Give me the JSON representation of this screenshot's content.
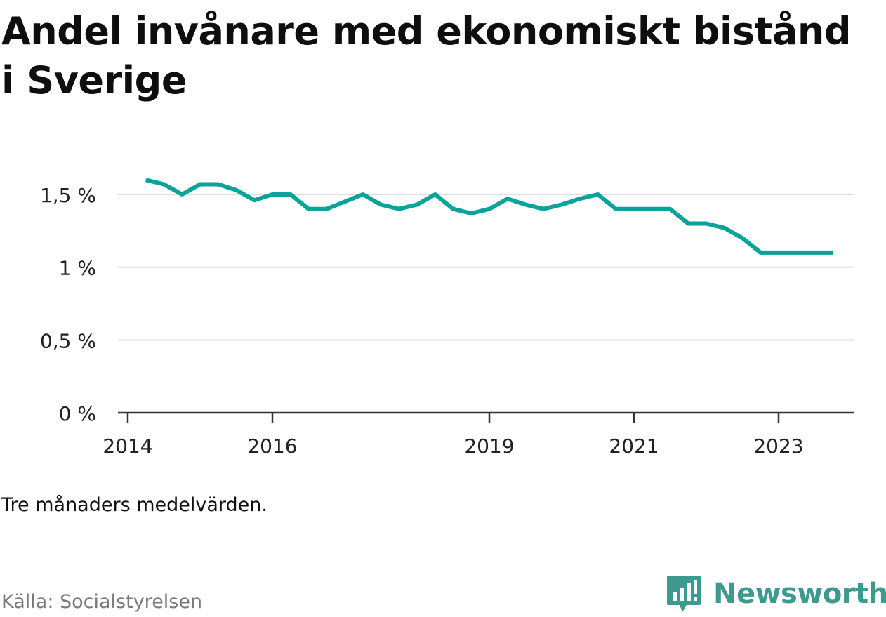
{
  "title": "Andel invånare med ekonomiskt bistånd i Sverige",
  "note": "Tre månaders medelvärden.",
  "source": "Källa: Socialstyrelsen",
  "brand": {
    "name": "Newsworthy",
    "icon": "newsworthy-logo-icon"
  },
  "colors": {
    "line": "#0aa39a",
    "grid": "#dddddd",
    "axis": "#333333",
    "brand": "#3d9a8f"
  },
  "chart_data": {
    "type": "line",
    "title": "Andel invånare med ekonomiskt bistånd i Sverige",
    "ylim": [
      0,
      1.6
    ],
    "y_ticks": [
      {
        "value": 0,
        "label": "0 %"
      },
      {
        "value": 0.5,
        "label": "0,5 %"
      },
      {
        "value": 1,
        "label": "1 %"
      },
      {
        "value": 1.5,
        "label": "1,5 %"
      }
    ],
    "x_ticks": [
      {
        "value": "2014-01",
        "label": "2014"
      },
      {
        "value": "2016-01",
        "label": "2016"
      },
      {
        "value": "2019-01",
        "label": "2019"
      },
      {
        "value": "2021-01",
        "label": "2021"
      },
      {
        "value": "2023-01",
        "label": "2023"
      }
    ],
    "grid": "horizontal",
    "series": [
      {
        "name": "",
        "x": [
          "2014-04",
          "2014-07",
          "2014-10",
          "2015-01",
          "2015-04",
          "2015-07",
          "2015-10",
          "2016-01",
          "2016-04",
          "2016-07",
          "2016-10",
          "2017-01",
          "2017-04",
          "2017-07",
          "2017-10",
          "2018-01",
          "2018-04",
          "2018-07",
          "2018-10",
          "2019-01",
          "2019-04",
          "2019-07",
          "2019-10",
          "2020-01",
          "2020-04",
          "2020-07",
          "2020-10",
          "2021-01",
          "2021-04",
          "2021-07",
          "2021-10",
          "2022-01",
          "2022-04",
          "2022-07",
          "2022-10",
          "2023-01",
          "2023-04",
          "2023-07",
          "2023-10"
        ],
        "values": [
          1.6,
          1.57,
          1.5,
          1.57,
          1.57,
          1.53,
          1.46,
          1.5,
          1.5,
          1.4,
          1.4,
          1.45,
          1.5,
          1.43,
          1.4,
          1.43,
          1.5,
          1.4,
          1.37,
          1.4,
          1.47,
          1.43,
          1.4,
          1.43,
          1.47,
          1.5,
          1.4,
          1.4,
          1.4,
          1.4,
          1.3,
          1.3,
          1.27,
          1.2,
          1.1,
          1.1,
          1.1,
          1.1,
          1.1
        ]
      }
    ]
  }
}
